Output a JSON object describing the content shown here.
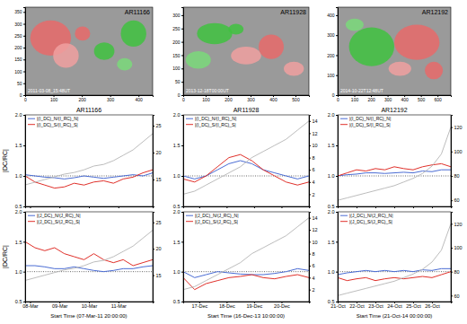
{
  "chart_data": [
    {
      "type": "image",
      "title": "AR11166",
      "annotation": "2011-03-08_15:48UT",
      "xlim": [
        0,
        450
      ],
      "xticks": [
        0,
        100,
        200,
        300,
        400
      ],
      "ylim": [
        0,
        370
      ],
      "yticks": [
        0,
        50,
        100,
        150,
        200,
        250,
        300,
        350
      ]
    },
    {
      "type": "image",
      "title": "AR11928",
      "annotation": "2013-12-18T00:00UT",
      "xlim": [
        0,
        560
      ],
      "xticks": [
        0,
        100,
        200,
        300,
        400,
        500
      ],
      "ylim": [
        0,
        330
      ],
      "yticks": [
        0,
        50,
        100,
        150,
        200,
        250,
        300
      ]
    },
    {
      "type": "image",
      "title": "AR12192",
      "annotation": "2014-10-22T12:48UT",
      "xlim": [
        0,
        680
      ],
      "xticks": [
        0,
        100,
        200,
        300,
        400,
        500,
        600
      ],
      "ylim": [
        0,
        440
      ],
      "yticks": [
        0,
        100,
        200,
        300,
        400
      ]
    },
    {
      "type": "line",
      "title": "AR11166",
      "y_label": "|DC/RC|",
      "tick_labels": "y",
      "legend": "top-left",
      "hline": 1,
      "x": [
        0,
        8,
        16,
        24,
        32,
        40,
        48,
        56,
        64,
        72,
        80,
        88,
        96,
        104
      ],
      "xlim": [
        0,
        104
      ],
      "xticks": [
        4,
        28,
        52,
        76
      ],
      "ylim": [
        0.5,
        2.0
      ],
      "yticks": [
        0.5,
        {
          "value": 1,
          "label": "1.0"
        },
        1.5,
        {
          "value": 2,
          "label": "2.0"
        }
      ],
      "y2lim": [
        10,
        27
      ],
      "y2ticks": [
        15,
        20,
        25
      ],
      "series": [
        {
          "name": "|(I_DC)_N/(I_RC)_N|",
          "color": "#4a6cd4",
          "values": [
            1.02,
            1.0,
            0.98,
            0.97,
            0.95,
            0.97,
            1.0,
            0.98,
            0.96,
            0.98,
            1.0,
            1.02,
            1.0,
            1.05
          ]
        },
        {
          "name": "|(I_DC)_S/(I_RC)_S|",
          "color": "#e0302a",
          "values": [
            1.0,
            0.9,
            0.85,
            0.8,
            0.82,
            0.88,
            0.85,
            0.9,
            0.92,
            0.88,
            0.95,
            0.98,
            1.05,
            1.1
          ]
        },
        {
          "color": "#b4b4b4",
          "axis": "y2",
          "values": [
            14,
            14.5,
            15,
            15.5,
            16,
            16.3,
            16.8,
            17.5,
            17.8,
            18.5,
            19.5,
            20.5,
            22,
            23.5
          ]
        }
      ]
    },
    {
      "type": "line",
      "title": "AR11928",
      "tick_labels": "y",
      "legend": "top-left",
      "hline": 1,
      "x": [
        0,
        10,
        20,
        30,
        40,
        50,
        60,
        70,
        80,
        90,
        100,
        110
      ],
      "xlim": [
        0,
        110
      ],
      "xticks": [
        14,
        38,
        62,
        86
      ],
      "ylim": [
        0.5,
        2.0
      ],
      "yticks": [
        0.5,
        {
          "value": 1,
          "label": "1.0"
        },
        1.5,
        {
          "value": 2,
          "label": "2.0"
        }
      ],
      "y2lim": [
        0,
        15
      ],
      "y2ticks": [
        2,
        4,
        6,
        8,
        10,
        12,
        14
      ],
      "series": [
        {
          "name": "|(I_DC)_N/(I_RC)_N|",
          "color": "#4a6cd4",
          "values": [
            1.0,
            0.95,
            1.0,
            1.1,
            1.2,
            1.25,
            1.2,
            1.1,
            1.05,
            1.0,
            0.95,
            1.0
          ]
        },
        {
          "name": "|(I_DC)_S/(I_RC)_S|",
          "color": "#e0302a",
          "values": [
            0.95,
            0.9,
            1.0,
            1.15,
            1.3,
            1.35,
            1.25,
            1.1,
            1.0,
            0.9,
            0.85,
            0.9
          ]
        },
        {
          "color": "#b4b4b4",
          "axis": "y2",
          "values": [
            2,
            2.5,
            3.5,
            4.5,
            5.5,
            6.5,
            8,
            9,
            10,
            11,
            12.5,
            14
          ]
        }
      ]
    },
    {
      "type": "line",
      "title": "AR12192",
      "tick_labels": "y",
      "legend": "top-left",
      "hline": 1,
      "x": [
        0,
        12,
        24,
        36,
        48,
        60,
        72,
        84,
        96,
        108,
        120,
        132,
        144
      ],
      "xlim": [
        0,
        144
      ],
      "xticks": [
        0,
        24,
        48,
        72,
        96,
        120
      ],
      "ylim": [
        0.5,
        2.0
      ],
      "yticks": [
        0.5,
        {
          "value": 1,
          "label": "1.0"
        },
        1.5,
        {
          "value": 2,
          "label": "2.0"
        }
      ],
      "y2lim": [
        55,
        130
      ],
      "y2ticks": [
        60,
        80,
        100,
        120
      ],
      "series": [
        {
          "name": "|(I_DC)_N/(I_RC)_N|",
          "color": "#4a6cd4",
          "values": [
            1.0,
            1.02,
            1.03,
            1.05,
            1.05,
            1.04,
            1.05,
            1.06,
            1.05,
            1.08,
            1.07,
            1.1,
            1.1
          ]
        },
        {
          "name": "|(I_DC)_S/(I_RC)_S|",
          "color": "#e0302a",
          "values": [
            1.0,
            1.05,
            1.1,
            1.08,
            1.12,
            1.1,
            1.15,
            1.12,
            1.1,
            1.15,
            1.18,
            1.2,
            1.15
          ]
        },
        {
          "color": "#b4b4b4",
          "axis": "y2",
          "values": [
            60,
            62,
            64,
            66,
            68,
            70,
            72,
            75,
            78,
            82,
            88,
            98,
            120
          ]
        }
      ]
    },
    {
      "type": "line",
      "y_label": "|DC/RC|",
      "x_label": "Start Time (07-Mar-11 20:00:00)",
      "legend": "top-left",
      "hline": 1,
      "x": [
        0,
        8,
        16,
        24,
        32,
        40,
        48,
        56,
        64,
        72,
        80,
        88,
        96,
        104
      ],
      "xlim": [
        0,
        104
      ],
      "xticks": [
        {
          "value": 4,
          "label": "08-Mar"
        },
        {
          "value": 28,
          "label": "09-Mar"
        },
        {
          "value": 52,
          "label": "10-Mar"
        },
        {
          "value": 76,
          "label": "11-Mar"
        }
      ],
      "ylim": [
        0.5,
        2.0
      ],
      "yticks": [
        0.5,
        {
          "value": 1,
          "label": "1.0"
        },
        1.5,
        {
          "value": 2,
          "label": "2.0"
        }
      ],
      "y2lim": [
        10,
        27
      ],
      "y2ticks": [
        15,
        20,
        25
      ],
      "series": [
        {
          "name": "|(J_DC)_N/(J_RC)_N|",
          "color": "#4a6cd4",
          "values": [
            1.1,
            1.1,
            1.08,
            1.05,
            1.05,
            1.08,
            1.05,
            1.02,
            1.0,
            1.02,
            1.05,
            1.05,
            1.08,
            1.1
          ]
        },
        {
          "name": "|(J_DC)_S/(J_RC)_S|",
          "color": "#e0302a",
          "values": [
            1.5,
            1.4,
            1.35,
            1.4,
            1.3,
            1.25,
            1.2,
            1.3,
            1.2,
            1.15,
            1.2,
            1.1,
            1.15,
            1.2
          ]
        },
        {
          "color": "#b4b4b4",
          "axis": "y2",
          "values": [
            14,
            14.5,
            15,
            15.5,
            16,
            16.3,
            16.8,
            17.5,
            17.8,
            18.5,
            19.5,
            20.5,
            22,
            23.5
          ]
        }
      ]
    },
    {
      "type": "line",
      "x_label": "Start Time (16-Dec-13 10:00:00)",
      "legend": "top-left",
      "hline": 1,
      "x": [
        0,
        10,
        20,
        30,
        40,
        50,
        60,
        70,
        80,
        90,
        100,
        110
      ],
      "xlim": [
        0,
        110
      ],
      "xticks": [
        {
          "value": 14,
          "label": "17-Dec"
        },
        {
          "value": 38,
          "label": "18-Dec"
        },
        {
          "value": 62,
          "label": "19-Dec"
        },
        {
          "value": 86,
          "label": "20-Dec"
        }
      ],
      "ylim": [
        0.5,
        2.0
      ],
      "yticks": [
        0.5,
        {
          "value": 1,
          "label": "1.0"
        },
        1.5,
        {
          "value": 2,
          "label": "2.0"
        }
      ],
      "y2lim": [
        0,
        15
      ],
      "y2ticks": [
        2,
        4,
        6,
        8,
        10,
        12,
        14
      ],
      "series": [
        {
          "name": "|(J_DC)_N/(J_RC)_N|",
          "color": "#4a6cd4",
          "values": [
            1.0,
            0.9,
            0.95,
            1.0,
            0.98,
            0.96,
            0.95,
            0.95,
            0.97,
            1.0,
            1.05,
            1.02
          ]
        },
        {
          "name": "|(J_DC)_S/(J_RC)_S|",
          "color": "#e0302a",
          "values": [
            0.9,
            0.7,
            0.8,
            0.85,
            0.9,
            0.92,
            0.95,
            0.9,
            0.88,
            0.92,
            0.95,
            0.9
          ]
        },
        {
          "color": "#b4b4b4",
          "axis": "y2",
          "values": [
            2,
            2.5,
            3.5,
            4.5,
            5.5,
            6.5,
            8,
            9,
            10,
            11,
            12.5,
            14
          ]
        }
      ]
    },
    {
      "type": "line",
      "x_label": "Start Time (21-Oct-14 00:00:00)",
      "legend": "top-left",
      "hline": 1,
      "x": [
        0,
        12,
        24,
        36,
        48,
        60,
        72,
        84,
        96,
        108,
        120,
        132,
        144
      ],
      "xlim": [
        0,
        144
      ],
      "xticks": [
        {
          "value": 0,
          "label": "21-Oct"
        },
        {
          "value": 24,
          "label": "22-Oct"
        },
        {
          "value": 48,
          "label": "23-Oct"
        },
        {
          "value": 72,
          "label": "24-Oct"
        },
        {
          "value": 96,
          "label": "25-Oct"
        },
        {
          "value": 120,
          "label": "26-Oct"
        }
      ],
      "ylim": [
        0.5,
        2.0
      ],
      "yticks": [
        0.5,
        {
          "value": 1,
          "label": "1.0"
        },
        1.5,
        {
          "value": 2,
          "label": "2.0"
        }
      ],
      "y2lim": [
        55,
        130
      ],
      "y2ticks": [
        60,
        80,
        100,
        120
      ],
      "series": [
        {
          "name": "|(J_DC)_N/(J_RC)_N|",
          "color": "#4a6cd4",
          "values": [
            0.95,
            0.98,
            1.0,
            1.02,
            1.0,
            1.02,
            1.0,
            1.02,
            1.0,
            1.03,
            1.02,
            1.05,
            1.05
          ]
        },
        {
          "name": "|(J_DC)_S/(J_RC)_S|",
          "color": "#e0302a",
          "values": [
            0.9,
            0.85,
            0.88,
            0.9,
            0.85,
            0.88,
            0.9,
            0.88,
            0.9,
            0.92,
            0.9,
            0.95,
            1.0
          ]
        },
        {
          "color": "#b4b4b4",
          "axis": "y2",
          "values": [
            60,
            62,
            64,
            66,
            68,
            70,
            72,
            75,
            78,
            82,
            88,
            98,
            120
          ]
        }
      ]
    }
  ]
}
